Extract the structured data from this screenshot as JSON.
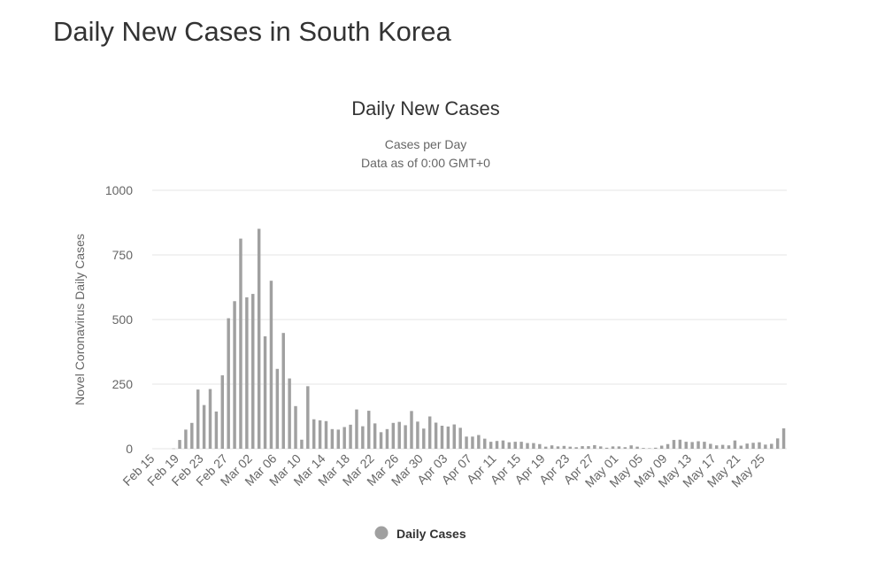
{
  "page": {
    "title": "Daily New Cases in South Korea"
  },
  "colors": {
    "bar": "#a0a0a0",
    "grid": "#e6e6e6",
    "axis_text": "#666666",
    "title_text": "#333333"
  },
  "chart_data": {
    "type": "bar",
    "title": "Daily New Cases",
    "subtitle_lines": [
      "Cases per Day",
      "Data as of 0:00 GMT+0"
    ],
    "ylabel": "Novel Coronavirus Daily Cases",
    "xlabel": "",
    "ylim": [
      0,
      1000
    ],
    "yticks": [
      0,
      250,
      500,
      750,
      1000
    ],
    "grid": true,
    "legend_position": "bottom-center",
    "categories": [
      "Feb 15",
      "Feb 16",
      "Feb 17",
      "Feb 18",
      "Feb 19",
      "Feb 20",
      "Feb 21",
      "Feb 22",
      "Feb 23",
      "Feb 24",
      "Feb 25",
      "Feb 26",
      "Feb 27",
      "Feb 28",
      "Feb 29",
      "Mar 01",
      "Mar 02",
      "Mar 03",
      "Mar 04",
      "Mar 05",
      "Mar 06",
      "Mar 07",
      "Mar 08",
      "Mar 09",
      "Mar 10",
      "Mar 11",
      "Mar 12",
      "Mar 13",
      "Mar 14",
      "Mar 15",
      "Mar 16",
      "Mar 17",
      "Mar 18",
      "Mar 19",
      "Mar 20",
      "Mar 21",
      "Mar 22",
      "Mar 23",
      "Mar 24",
      "Mar 25",
      "Mar 26",
      "Mar 27",
      "Mar 28",
      "Mar 29",
      "Mar 30",
      "Mar 31",
      "Apr 01",
      "Apr 02",
      "Apr 03",
      "Apr 04",
      "Apr 05",
      "Apr 06",
      "Apr 07",
      "Apr 08",
      "Apr 09",
      "Apr 10",
      "Apr 11",
      "Apr 12",
      "Apr 13",
      "Apr 14",
      "Apr 15",
      "Apr 16",
      "Apr 17",
      "Apr 18",
      "Apr 19",
      "Apr 20",
      "Apr 21",
      "Apr 22",
      "Apr 23",
      "Apr 24",
      "Apr 25",
      "Apr 26",
      "Apr 27",
      "Apr 28",
      "Apr 29",
      "Apr 30",
      "May 01",
      "May 02",
      "May 03",
      "May 04",
      "May 05",
      "May 06",
      "May 07",
      "May 08",
      "May 09",
      "May 10",
      "May 11",
      "May 12",
      "May 13",
      "May 14",
      "May 15",
      "May 16",
      "May 17",
      "May 18",
      "May 19",
      "May 20",
      "May 21",
      "May 22",
      "May 23",
      "May 24",
      "May 25",
      "May 26",
      "May 27",
      "May 28"
    ],
    "x_tick_labels": [
      "Feb 15",
      "Feb 19",
      "Feb 23",
      "Feb 27",
      "Mar 02",
      "Mar 06",
      "Mar 10",
      "Mar 14",
      "Mar 18",
      "Mar 22",
      "Mar 26",
      "Mar 30",
      "Apr 03",
      "Apr 07",
      "Apr 11",
      "Apr 15",
      "Apr 19",
      "Apr 23",
      "Apr 27",
      "May 01",
      "May 05",
      "May 09",
      "May 13",
      "May 17",
      "May 21",
      "May 25"
    ],
    "series": [
      {
        "name": "Daily Cases",
        "values": [
          0,
          0,
          0,
          1,
          34,
          74,
          100,
          229,
          169,
          231,
          144,
          284,
          505,
          571,
          813,
          586,
          599,
          851,
          435,
          650,
          309,
          448,
          272,
          165,
          35,
          242,
          114,
          110,
          107,
          76,
          74,
          84,
          93,
          152,
          87,
          147,
          98,
          64,
          76,
          100,
          104,
          91,
          146,
          105,
          78,
          125,
          101,
          89,
          86,
          94,
          81,
          47,
          47,
          53,
          39,
          27,
          30,
          32,
          25,
          27,
          27,
          22,
          22,
          18,
          8,
          13,
          9,
          11,
          8,
          6,
          10,
          10,
          14,
          9,
          4,
          9,
          9,
          6,
          13,
          8,
          3,
          2,
          4,
          12,
          18,
          34,
          35,
          27,
          26,
          29,
          27,
          19,
          13,
          15,
          13,
          32,
          12,
          20,
          23,
          25,
          16,
          19,
          40,
          79
        ]
      }
    ]
  }
}
